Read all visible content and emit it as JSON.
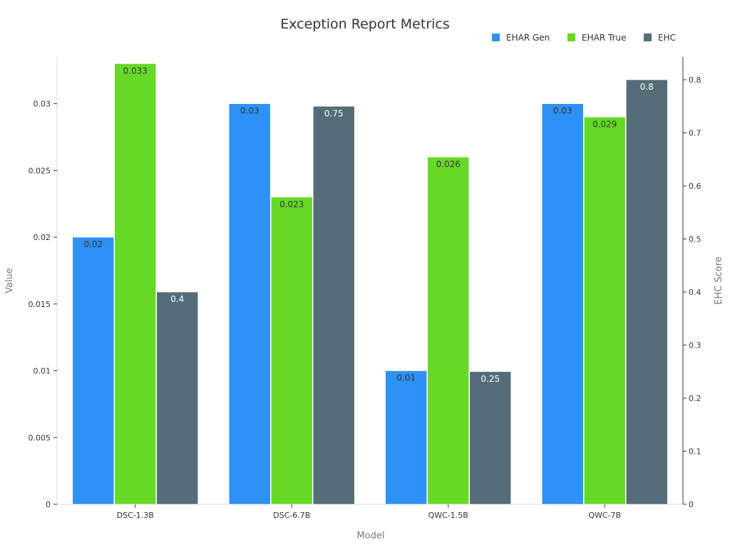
{
  "chart_data": {
    "type": "bar",
    "title": "Exception Report Metrics",
    "xlabel": "Model",
    "ylabel": "Value",
    "y2label": "EHC Score",
    "categories": [
      "DSC-1.3B",
      "DSC-6.7B",
      "QWC-1.5B",
      "QWC-7B"
    ],
    "ylim": [
      0,
      0.0335
    ],
    "y2lim": [
      0,
      0.8
    ],
    "yticks": [
      "0",
      "0.005",
      "0.01",
      "0.015",
      "0.02",
      "0.025",
      "0.03"
    ],
    "y2ticks": [
      "0",
      "0.1",
      "0.2",
      "0.3",
      "0.4",
      "0.5",
      "0.6",
      "0.7",
      "0.8"
    ],
    "legend_position": "top-right",
    "series": [
      {
        "name": "EHAR Gen",
        "axis": "left",
        "color": "#2e91f5",
        "values": [
          0.02,
          0.03,
          0.01,
          0.03
        ],
        "labels": [
          "0.02",
          "0.03",
          "0.01",
          "0.03"
        ]
      },
      {
        "name": "EHAR True",
        "axis": "left",
        "color": "#66d926",
        "values": [
          0.033,
          0.023,
          0.026,
          0.029
        ],
        "labels": [
          "0.033",
          "0.023",
          "0.026",
          "0.029"
        ]
      },
      {
        "name": "EHC",
        "axis": "right",
        "color": "#546d78",
        "values": [
          0.4,
          0.75,
          0.25,
          0.8
        ],
        "labels": [
          "0.4",
          "0.75",
          "0.25",
          "0.8"
        ]
      }
    ]
  }
}
